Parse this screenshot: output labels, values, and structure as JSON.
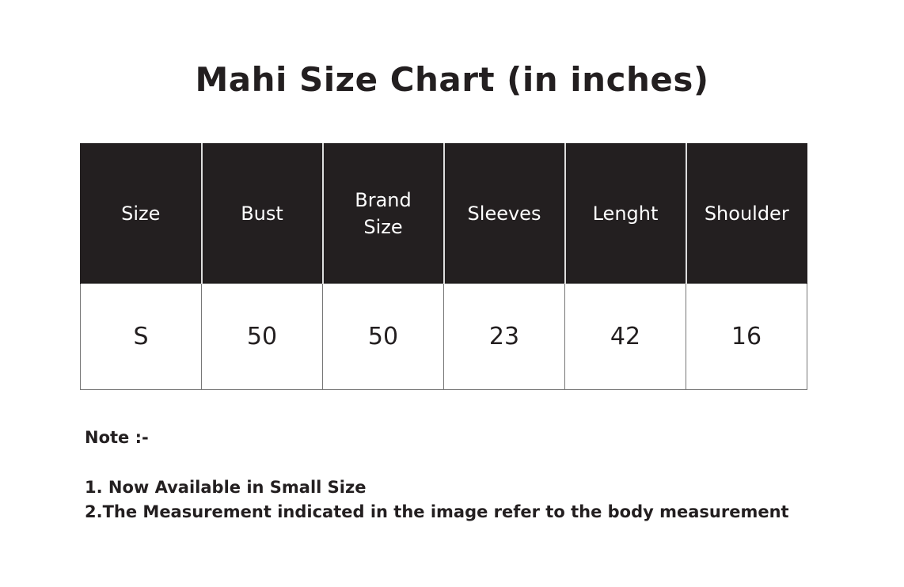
{
  "title": "Mahi Size Chart (in inches)",
  "table": {
    "headers": [
      "Size",
      "Bust",
      "Brand Size",
      "Sleeves",
      "Lenght",
      "Shoulder"
    ],
    "rows": [
      [
        "S",
        "50",
        "50",
        "23",
        "42",
        "16"
      ]
    ]
  },
  "notes": {
    "heading": "Note :-",
    "items": [
      "1. Now Available in Small Size",
      "2.The Measurement indicated in the image refer to the body measurement"
    ]
  },
  "colors": {
    "header_bg": "#231f20",
    "header_text": "#ffffff",
    "text": "#231f20"
  }
}
